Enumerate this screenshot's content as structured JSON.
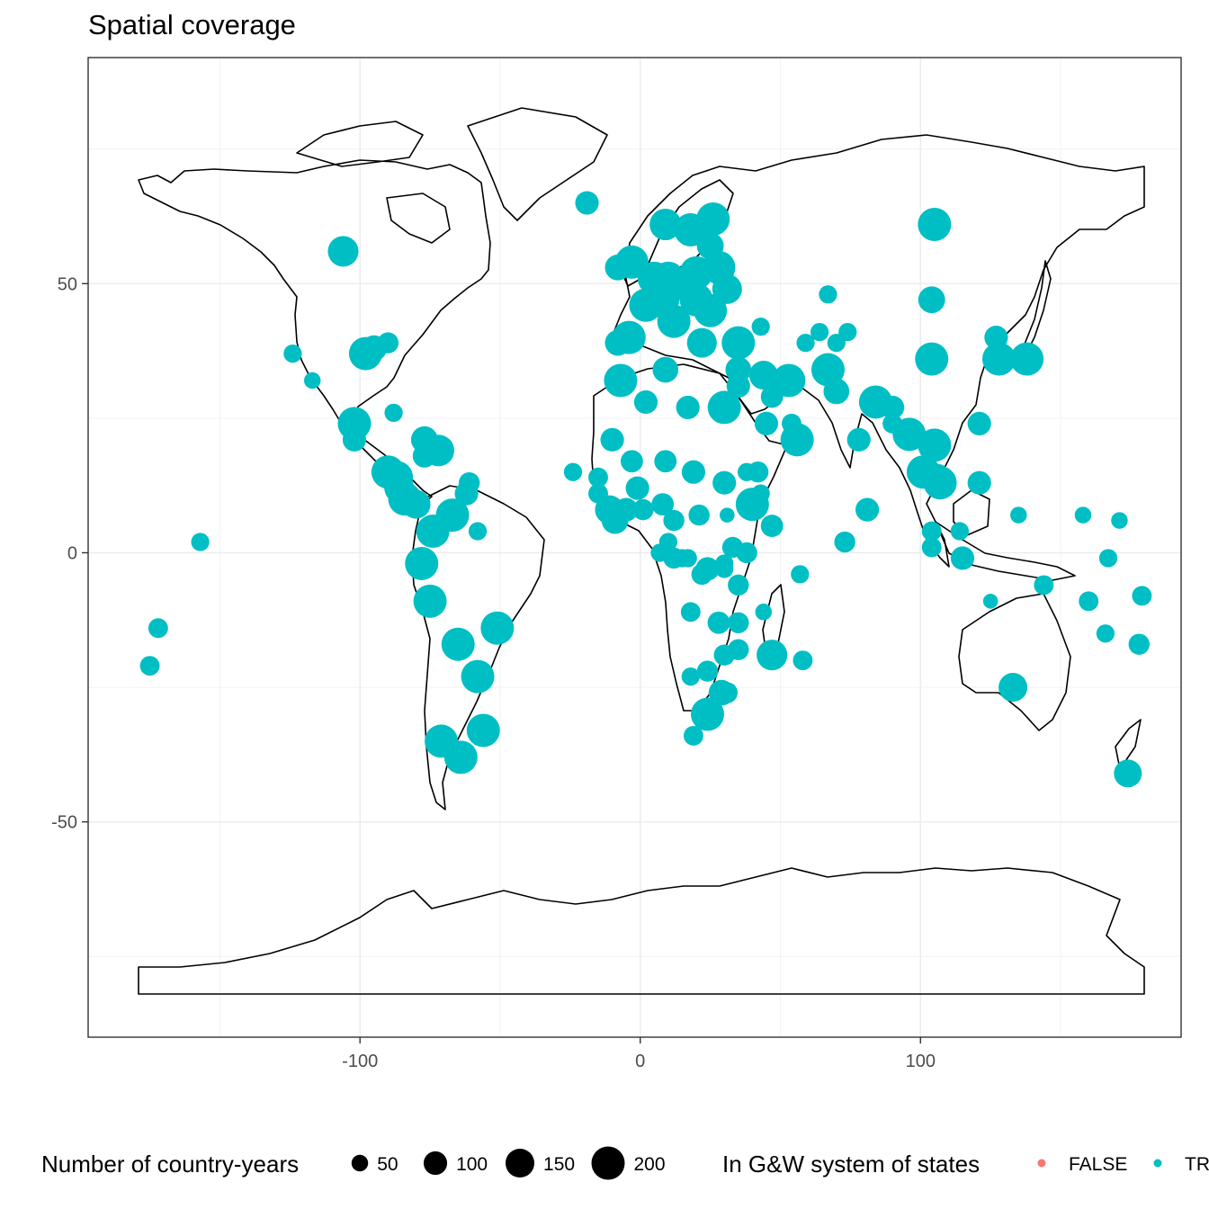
{
  "chart_data": {
    "type": "scatter",
    "title": "Spatial coverage",
    "xlabel": "",
    "ylabel": "",
    "xlim": [
      -197,
      193
    ],
    "ylim": [
      -90,
      92
    ],
    "x_ticks": [
      -100,
      0,
      100
    ],
    "y_ticks": [
      50,
      0,
      -50
    ],
    "x_tick_labels": [
      "-100",
      "0",
      "100"
    ],
    "y_tick_labels": [
      "50",
      "0",
      "-50"
    ],
    "grid": true,
    "legend_position": "bottom",
    "size_legend": {
      "title": "Number of country-years",
      "breaks": [
        50,
        100,
        150,
        200
      ],
      "labels": [
        "50",
        "100",
        "150",
        "200"
      ]
    },
    "color_legend": {
      "title": "In G&W system of states",
      "entries": [
        {
          "label": "FALSE",
          "color": "#F8766D"
        },
        {
          "label": "TRUE",
          "color": "#00BFC4"
        }
      ]
    },
    "series": [
      {
        "name": "TRUE",
        "color": "#00BFC4",
        "points": [
          {
            "x": -106,
            "y": 56,
            "size": 170
          },
          {
            "x": -98,
            "y": 37,
            "size": 200
          },
          {
            "x": -95,
            "y": 38,
            "size": 120
          },
          {
            "x": -90,
            "y": 39,
            "size": 80
          },
          {
            "x": -124,
            "y": 37,
            "size": 60
          },
          {
            "x": -117,
            "y": 32,
            "size": 50
          },
          {
            "x": -102,
            "y": 24,
            "size": 200
          },
          {
            "x": -102,
            "y": 21,
            "size": 100
          },
          {
            "x": -88,
            "y": 26,
            "size": 60
          },
          {
            "x": -77,
            "y": 21,
            "size": 130
          },
          {
            "x": -72,
            "y": 19,
            "size": 180
          },
          {
            "x": -77,
            "y": 18,
            "size": 100
          },
          {
            "x": -90,
            "y": 15,
            "size": 200
          },
          {
            "x": -87,
            "y": 14,
            "size": 200
          },
          {
            "x": -86,
            "y": 12,
            "size": 160
          },
          {
            "x": -84,
            "y": 10,
            "size": 200
          },
          {
            "x": -80,
            "y": 9,
            "size": 150
          },
          {
            "x": -74,
            "y": 4,
            "size": 200
          },
          {
            "x": -67,
            "y": 7,
            "size": 200
          },
          {
            "x": -62,
            "y": 11,
            "size": 100
          },
          {
            "x": -61,
            "y": 13,
            "size": 80
          },
          {
            "x": -58,
            "y": 4,
            "size": 60
          },
          {
            "x": -78,
            "y": -2,
            "size": 200
          },
          {
            "x": -75,
            "y": -9,
            "size": 200
          },
          {
            "x": -65,
            "y": -17,
            "size": 200
          },
          {
            "x": -58,
            "y": -23,
            "size": 200
          },
          {
            "x": -51,
            "y": -14,
            "size": 200
          },
          {
            "x": -71,
            "y": -35,
            "size": 200
          },
          {
            "x": -64,
            "y": -38,
            "size": 200
          },
          {
            "x": -56,
            "y": -33,
            "size": 200
          },
          {
            "x": -157,
            "y": 2,
            "size": 60
          },
          {
            "x": -172,
            "y": -14,
            "size": 70
          },
          {
            "x": -175,
            "y": -21,
            "size": 70
          },
          {
            "x": -19,
            "y": 65,
            "size": 100
          },
          {
            "x": -3,
            "y": 54,
            "size": 200
          },
          {
            "x": -8,
            "y": 53,
            "size": 120
          },
          {
            "x": 5,
            "y": 51,
            "size": 200
          },
          {
            "x": 10,
            "y": 51,
            "size": 200
          },
          {
            "x": 15,
            "y": 50,
            "size": 200
          },
          {
            "x": 8,
            "y": 47,
            "size": 200
          },
          {
            "x": 2,
            "y": 46,
            "size": 200
          },
          {
            "x": 12,
            "y": 43,
            "size": 200
          },
          {
            "x": 20,
            "y": 47,
            "size": 200
          },
          {
            "x": 25,
            "y": 45,
            "size": 200
          },
          {
            "x": 9,
            "y": 61,
            "size": 180
          },
          {
            "x": 18,
            "y": 60,
            "size": 200
          },
          {
            "x": 26,
            "y": 62,
            "size": 200
          },
          {
            "x": 25,
            "y": 57,
            "size": 130
          },
          {
            "x": 28,
            "y": 53,
            "size": 200
          },
          {
            "x": 31,
            "y": 49,
            "size": 160
          },
          {
            "x": 20,
            "y": 52,
            "size": 200
          },
          {
            "x": -4,
            "y": 40,
            "size": 200
          },
          {
            "x": -8,
            "y": 39,
            "size": 120
          },
          {
            "x": 22,
            "y": 39,
            "size": 160
          },
          {
            "x": 35,
            "y": 39,
            "size": 200
          },
          {
            "x": 35,
            "y": 34,
            "size": 120
          },
          {
            "x": 35,
            "y": 31,
            "size": 100
          },
          {
            "x": 44,
            "y": 33,
            "size": 150
          },
          {
            "x": 53,
            "y": 32,
            "size": 200
          },
          {
            "x": 45,
            "y": 24,
            "size": 100
          },
          {
            "x": 54,
            "y": 24,
            "size": 70
          },
          {
            "x": 47,
            "y": 29,
            "size": 90
          },
          {
            "x": 56,
            "y": 21,
            "size": 200
          },
          {
            "x": 43,
            "y": 42,
            "size": 60
          },
          {
            "x": 59,
            "y": 39,
            "size": 60
          },
          {
            "x": 64,
            "y": 41,
            "size": 60
          },
          {
            "x": 67,
            "y": 48,
            "size": 60
          },
          {
            "x": 70,
            "y": 39,
            "size": 60
          },
          {
            "x": 74,
            "y": 41,
            "size": 60
          },
          {
            "x": 67,
            "y": 34,
            "size": 200
          },
          {
            "x": 70,
            "y": 30,
            "size": 120
          },
          {
            "x": 9,
            "y": 34,
            "size": 120
          },
          {
            "x": 17,
            "y": 27,
            "size": 100
          },
          {
            "x": 30,
            "y": 27,
            "size": 200
          },
          {
            "x": 2,
            "y": 28,
            "size": 100
          },
          {
            "x": -7,
            "y": 32,
            "size": 200
          },
          {
            "x": -10,
            "y": 21,
            "size": 100
          },
          {
            "x": -3,
            "y": 17,
            "size": 90
          },
          {
            "x": 9,
            "y": 17,
            "size": 90
          },
          {
            "x": 19,
            "y": 15,
            "size": 100
          },
          {
            "x": 30,
            "y": 13,
            "size": 100
          },
          {
            "x": 38,
            "y": 15,
            "size": 60
          },
          {
            "x": 42,
            "y": 15,
            "size": 80
          },
          {
            "x": 40,
            "y": 9,
            "size": 200
          },
          {
            "x": 47,
            "y": 5,
            "size": 90
          },
          {
            "x": 43,
            "y": 11,
            "size": 60
          },
          {
            "x": -24,
            "y": 15,
            "size": 60
          },
          {
            "x": -15,
            "y": 14,
            "size": 70
          },
          {
            "x": -15,
            "y": 11,
            "size": 70
          },
          {
            "x": -11,
            "y": 8,
            "size": 150
          },
          {
            "x": -9,
            "y": 6,
            "size": 130
          },
          {
            "x": -5,
            "y": 8,
            "size": 100
          },
          {
            "x": -1,
            "y": 12,
            "size": 100
          },
          {
            "x": 1,
            "y": 8,
            "size": 80
          },
          {
            "x": 8,
            "y": 9,
            "size": 90
          },
          {
            "x": 12,
            "y": 6,
            "size": 80
          },
          {
            "x": 21,
            "y": 7,
            "size": 80
          },
          {
            "x": 31,
            "y": 7,
            "size": 40
          },
          {
            "x": 10,
            "y": 2,
            "size": 60
          },
          {
            "x": 7,
            "y": 0,
            "size": 60
          },
          {
            "x": 12,
            "y": -1,
            "size": 80
          },
          {
            "x": 15,
            "y": -1,
            "size": 60
          },
          {
            "x": 17,
            "y": -1,
            "size": 60
          },
          {
            "x": 24,
            "y": -3,
            "size": 100
          },
          {
            "x": 30,
            "y": -2,
            "size": 60
          },
          {
            "x": 33,
            "y": 1,
            "size": 80
          },
          {
            "x": 38,
            "y": 0,
            "size": 80
          },
          {
            "x": 35,
            "y": -6,
            "size": 80
          },
          {
            "x": 30,
            "y": -3,
            "size": 60
          },
          {
            "x": 18,
            "y": -11,
            "size": 70
          },
          {
            "x": 22,
            "y": -4,
            "size": 80
          },
          {
            "x": 28,
            "y": -13,
            "size": 90
          },
          {
            "x": 35,
            "y": -13,
            "size": 80
          },
          {
            "x": 44,
            "y": -11,
            "size": 50
          },
          {
            "x": 57,
            "y": -4,
            "size": 60
          },
          {
            "x": 47,
            "y": -19,
            "size": 170
          },
          {
            "x": 58,
            "y": -20,
            "size": 70
          },
          {
            "x": 30,
            "y": -19,
            "size": 80
          },
          {
            "x": 35,
            "y": -18,
            "size": 80
          },
          {
            "x": 24,
            "y": -22,
            "size": 80
          },
          {
            "x": 18,
            "y": -23,
            "size": 60
          },
          {
            "x": 29,
            "y": -26,
            "size": 120
          },
          {
            "x": 31,
            "y": -26,
            "size": 80
          },
          {
            "x": 24,
            "y": -30,
            "size": 200
          },
          {
            "x": 19,
            "y": -34,
            "size": 70
          },
          {
            "x": 78,
            "y": 21,
            "size": 100
          },
          {
            "x": 84,
            "y": 28,
            "size": 200
          },
          {
            "x": 90,
            "y": 27,
            "size": 100
          },
          {
            "x": 90,
            "y": 24,
            "size": 70
          },
          {
            "x": 81,
            "y": 8,
            "size": 100
          },
          {
            "x": 73,
            "y": 2,
            "size": 80
          },
          {
            "x": 96,
            "y": 22,
            "size": 200
          },
          {
            "x": 101,
            "y": 15,
            "size": 200
          },
          {
            "x": 105,
            "y": 20,
            "size": 200
          },
          {
            "x": 106,
            "y": 14,
            "size": 130
          },
          {
            "x": 107,
            "y": 13,
            "size": 200
          },
          {
            "x": 104,
            "y": 4,
            "size": 70
          },
          {
            "x": 104,
            "y": 1,
            "size": 70
          },
          {
            "x": 114,
            "y": 4,
            "size": 60
          },
          {
            "x": 115,
            "y": -1,
            "size": 100
          },
          {
            "x": 121,
            "y": 13,
            "size": 100
          },
          {
            "x": 121,
            "y": 24,
            "size": 100
          },
          {
            "x": 128,
            "y": 36,
            "size": 200
          },
          {
            "x": 127,
            "y": 40,
            "size": 100
          },
          {
            "x": 138,
            "y": 36,
            "size": 200
          },
          {
            "x": 104,
            "y": 36,
            "size": 200
          },
          {
            "x": 104,
            "y": 47,
            "size": 130
          },
          {
            "x": 105,
            "y": 61,
            "size": 200
          },
          {
            "x": 135,
            "y": 7,
            "size": 50
          },
          {
            "x": 125,
            "y": -9,
            "size": 40
          },
          {
            "x": 144,
            "y": -6,
            "size": 70
          },
          {
            "x": 133,
            "y": -25,
            "size": 150
          },
          {
            "x": 174,
            "y": -41,
            "size": 140
          },
          {
            "x": 160,
            "y": -9,
            "size": 70
          },
          {
            "x": 166,
            "y": -15,
            "size": 60
          },
          {
            "x": 178,
            "y": -17,
            "size": 80
          },
          {
            "x": 179,
            "y": -8,
            "size": 70
          },
          {
            "x": 167,
            "y": -1,
            "size": 60
          },
          {
            "x": 158,
            "y": 7,
            "size": 50
          },
          {
            "x": 171,
            "y": 6,
            "size": 50
          }
        ]
      }
    ]
  }
}
